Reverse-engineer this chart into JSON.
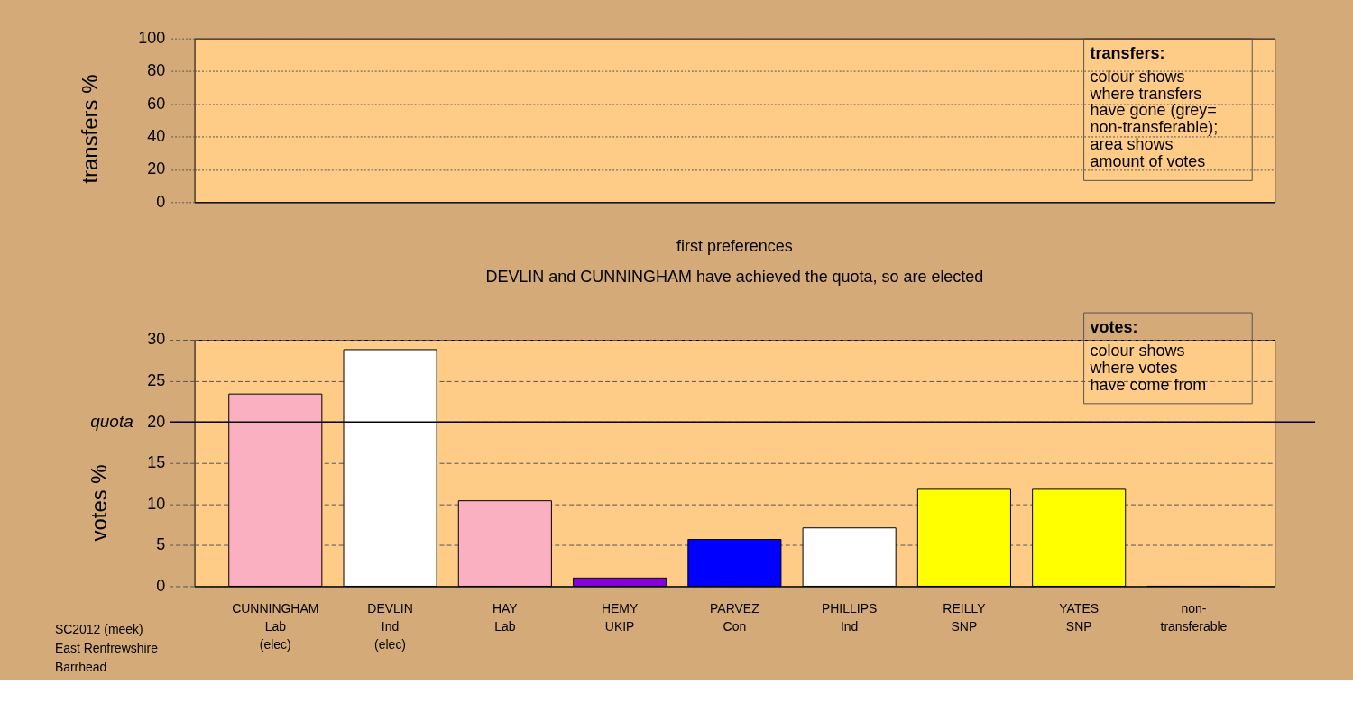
{
  "chart_data": [
    {
      "type": "bar",
      "ylabel": "transfers %",
      "categories": [
        null,
        null,
        null,
        null,
        null,
        null,
        null,
        null,
        null
      ],
      "values": [
        0,
        0,
        0,
        0,
        0,
        0,
        0,
        0,
        0
      ],
      "ylim": [
        0,
        100
      ],
      "yticks": [
        0,
        20,
        40,
        60,
        80,
        100
      ],
      "grid": "y",
      "tick_labels": "y",
      "annotations": [
        "transfers:\ncolour shows\nwhere transfers\nhave gone (grey=\nnon-transferable);\narea shows\namount of votes"
      ]
    },
    {
      "type": "bar",
      "title": "first preferences",
      "subtitle": "DEVLIN and CUNNINGHAM have achieved the quota, so are elected",
      "ylabel": "votes %",
      "categories": [
        "CUNNINGHAM\nLab\n(elec)",
        "DEVLIN\nInd\n(elec)",
        "HAY\nLab",
        "HEMY\nUKIP",
        "PARVEZ\nCon",
        "PHILLIPS\nInd",
        "REILLY\nSNP",
        "YATES\nSNP",
        "non-\ntransferable"
      ],
      "values": [
        23.4,
        28.8,
        10.4,
        1.0,
        5.7,
        7.1,
        11.8,
        11.8,
        0
      ],
      "colors": [
        "#fbb0c2",
        "#ffffff",
        "#fbb0c2",
        "#8800dd",
        "#0000ff",
        "#ffffff",
        "#ffff00",
        "#ffff00",
        "#999999"
      ],
      "ylim": [
        0,
        30
      ],
      "yticks": [
        0,
        5,
        10,
        15,
        20,
        25,
        30
      ],
      "grid": "y",
      "ref_lines": [
        {
          "axis": "y",
          "value": 20,
          "label": "quota",
          "color": "#000000"
        }
      ],
      "annotations": [
        "votes:\ncolour shows\nwhere votes\nhave come from",
        "SC2012 (meek)\nEast Renfrewshire\nBarrhead"
      ]
    }
  ]
}
